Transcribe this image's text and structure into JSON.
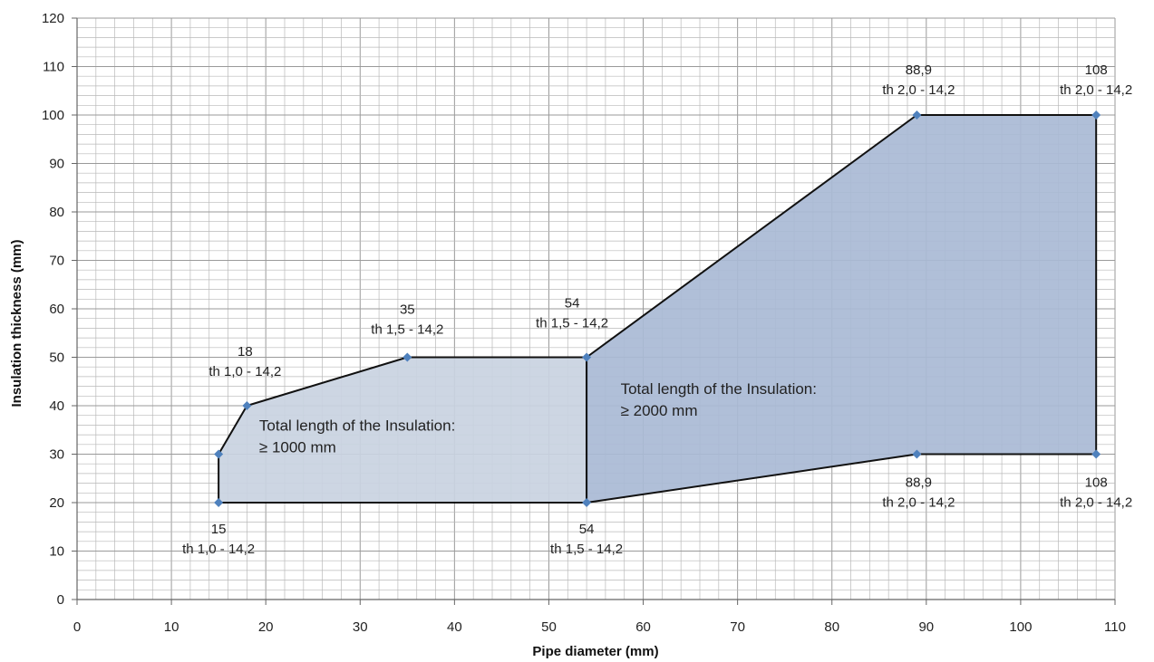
{
  "chart_data": {
    "type": "area",
    "xlabel": "Pipe diameter (mm)",
    "ylabel": "Insulation thickness (mm)",
    "xlim": [
      0,
      110
    ],
    "ylim": [
      0,
      120
    ],
    "x_major_step": 10,
    "y_major_step": 10,
    "x_minor_step": 2,
    "y_minor_step": 2,
    "grid": true,
    "regions": [
      {
        "label_lines": [
          "Total length of the Insulation:",
          "≥ 1000 mm"
        ],
        "fill": "#c9d3e1",
        "polygon": [
          [
            15,
            20
          ],
          [
            15,
            30
          ],
          [
            18,
            40
          ],
          [
            35,
            50
          ],
          [
            54,
            50
          ],
          [
            54,
            20
          ]
        ]
      },
      {
        "label_lines": [
          "Total length of the Insulation:",
          "≥ 2000 mm"
        ],
        "fill": "#a9bad5",
        "polygon": [
          [
            54,
            50
          ],
          [
            89,
            100
          ],
          [
            108,
            100
          ],
          [
            108,
            30
          ],
          [
            89,
            30
          ],
          [
            54,
            20
          ]
        ]
      }
    ],
    "points": [
      {
        "x": 15,
        "y": 20,
        "lines": [
          "15",
          "th 1,0 - 14,2"
        ]
      },
      {
        "x": 15,
        "y": 30,
        "lines": []
      },
      {
        "x": 18,
        "y": 40,
        "lines": [
          "18",
          "th 1,0 - 14,2"
        ]
      },
      {
        "x": 35,
        "y": 50,
        "lines": [
          "35",
          "th 1,5 - 14,2"
        ]
      },
      {
        "x": 54,
        "y": 50,
        "lines": [
          "54",
          "th 1,5 - 14,2"
        ]
      },
      {
        "x": 54,
        "y": 20,
        "lines": [
          "54",
          "th  1,5 - 14,2"
        ]
      },
      {
        "x": 89,
        "y": 100,
        "lines": [
          "88,9",
          "th 2,0 - 14,2"
        ]
      },
      {
        "x": 108,
        "y": 100,
        "lines": [
          "108",
          "th 2,0 - 14,2"
        ]
      },
      {
        "x": 89,
        "y": 30,
        "lines": [
          "88,9",
          "th 2,0 - 14,2"
        ]
      },
      {
        "x": 108,
        "y": 30,
        "lines": [
          "108",
          "th 2,0 - 14,2"
        ]
      }
    ],
    "colors": {
      "outline": "#111111",
      "marker": "#4f81bd",
      "grid": "#b9b9b9"
    }
  }
}
